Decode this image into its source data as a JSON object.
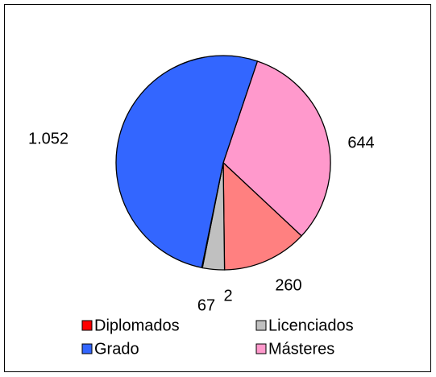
{
  "chart_data": {
    "type": "pie",
    "categories": [
      "Másteres",
      null,
      "Licenciados",
      "Diplomados",
      "Grado"
    ],
    "values": [
      644,
      260,
      67,
      2,
      1052
    ],
    "value_labels": [
      "644",
      "260",
      "67",
      "2",
      "1.052"
    ],
    "colors": [
      "#ff99cc",
      "#ff8080",
      "#c0c0c0",
      "#ff0000",
      "#3366ff"
    ]
  }
}
